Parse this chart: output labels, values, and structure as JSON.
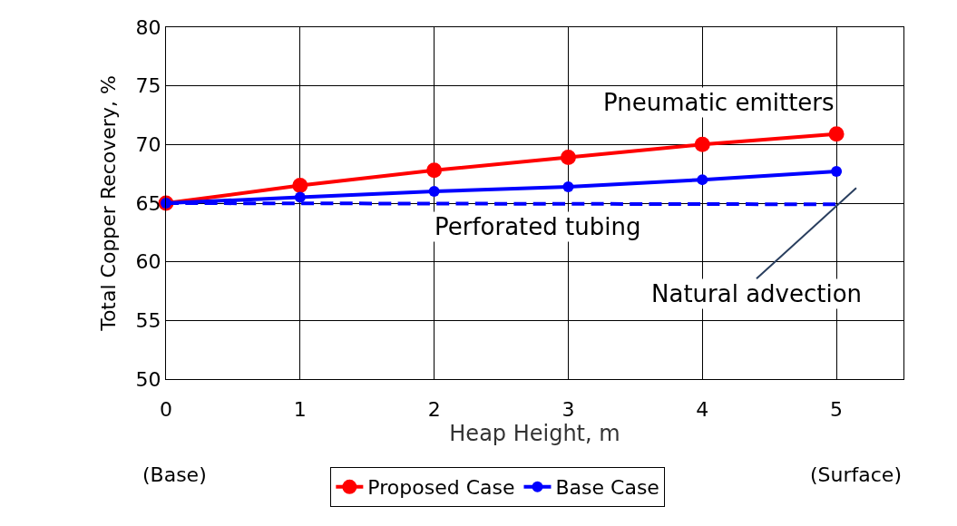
{
  "chart_data": {
    "type": "line",
    "xlabel": "Heap Height, m",
    "ylabel": "Total Copper Recovery, %",
    "x": [
      0,
      1,
      2,
      3,
      4,
      5
    ],
    "series": [
      {
        "name": "Proposed Case",
        "color": "#ff0000",
        "values": [
          65,
          66.5,
          67.8,
          68.9,
          70,
          70.9
        ],
        "marker": "circle",
        "line_style": "solid"
      },
      {
        "name": "Base Case",
        "color": "#0000ff",
        "values": [
          65,
          65.5,
          66.0,
          66.4,
          67.0,
          67.7
        ],
        "marker": "circle",
        "line_style": "solid"
      },
      {
        "color": "#0000ff",
        "x": [
          0,
          5
        ],
        "values": [
          65,
          64.9
        ],
        "marker": "none",
        "line_style": "dashed"
      }
    ],
    "xlim": [
      0,
      5.5
    ],
    "xticks": [
      0,
      1,
      2,
      3,
      4,
      5
    ],
    "ylim": [
      50,
      80
    ],
    "yticks": [
      50,
      55,
      60,
      65,
      70,
      75,
      80
    ],
    "grid": true,
    "legend": "bottom",
    "annotations": [
      {
        "text": "Pneumatic emitters",
        "x": 5,
        "y": 70.9
      },
      {
        "text": "Perforated tubing",
        "x": 2,
        "y": 64.9
      },
      "Natural advection",
      "(Base)",
      "(Surface)"
    ]
  }
}
